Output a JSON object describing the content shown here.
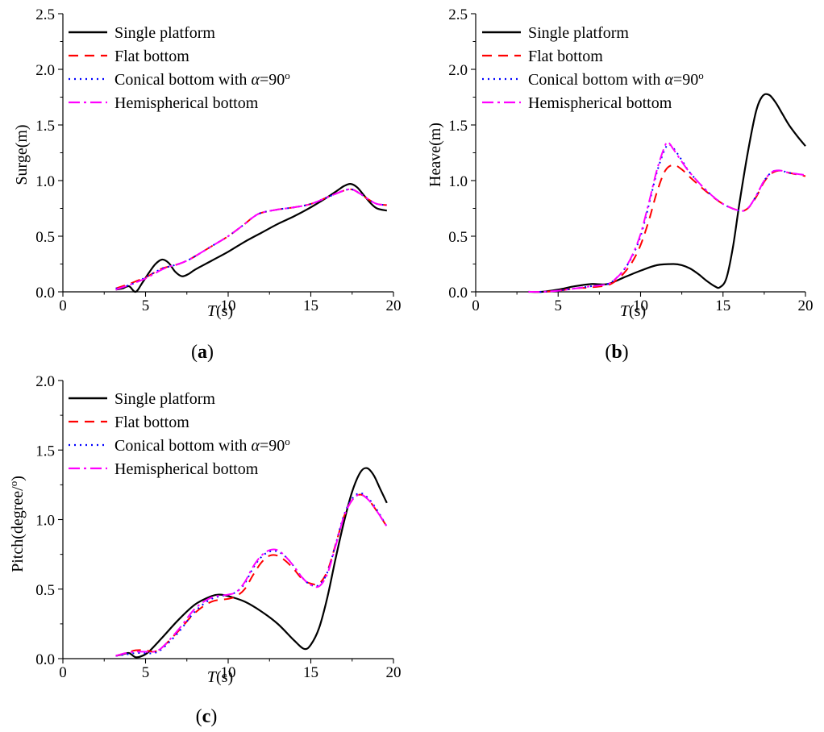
{
  "legend": [
    {
      "key": "single",
      "label": "Single platform",
      "color": "#000000",
      "dash": ""
    },
    {
      "key": "flat",
      "label": "Flat bottom",
      "color": "#ff0000",
      "dash": "12 8"
    },
    {
      "key": "conical",
      "label_prefix": "Conical bottom with ",
      "label_symbol": "α",
      "label_suffix": "=90",
      "label_sup": "o",
      "color": "#0000ff",
      "dash": "2 5"
    },
    {
      "key": "hemi",
      "label": "Hemispherical bottom",
      "color": "#ff00ff",
      "dash": "14 5 3 5"
    }
  ],
  "chart_data": [
    {
      "id": "a",
      "caption": "a",
      "type": "line",
      "ylabel": "Surge(m)",
      "xlabel": "T",
      "xlabel_unit": "(s)",
      "xlim": [
        0,
        20
      ],
      "ylim": [
        0,
        2.5
      ],
      "xticks": [
        0,
        5,
        10,
        15,
        20
      ],
      "yticks": [
        0.0,
        0.5,
        1.0,
        1.5,
        2.0,
        2.5
      ],
      "xticklabels": [
        "0",
        "5",
        "10",
        "15",
        "20"
      ],
      "yticklabels": [
        "0.0",
        "0.5",
        "1.0",
        "1.5",
        "2.0",
        "2.5"
      ],
      "series": [
        {
          "name": "Single platform",
          "x": [
            3.2,
            3.6,
            4.0,
            4.4,
            4.8,
            5.2,
            5.6,
            6.0,
            6.4,
            6.8,
            7.2,
            7.6,
            8.0,
            9.0,
            10.0,
            11.0,
            12.0,
            13.0,
            14.0,
            15.0,
            16.0,
            16.6,
            17.0,
            17.4,
            17.8,
            18.2,
            18.6,
            19.0,
            19.6
          ],
          "y": [
            0.02,
            0.03,
            0.05,
            0.0,
            0.08,
            0.17,
            0.25,
            0.29,
            0.26,
            0.18,
            0.14,
            0.16,
            0.2,
            0.28,
            0.36,
            0.45,
            0.53,
            0.61,
            0.68,
            0.76,
            0.85,
            0.91,
            0.95,
            0.97,
            0.94,
            0.87,
            0.8,
            0.75,
            0.73
          ]
        },
        {
          "name": "Flat bottom",
          "x": [
            3.2,
            3.6,
            4.0,
            4.5,
            5.0,
            5.5,
            6.0,
            6.5,
            7.0,
            7.5,
            8.0,
            9.0,
            10.0,
            11.0,
            11.5,
            12.0,
            13.0,
            14.0,
            15.0,
            16.0,
            17.0,
            17.5,
            18.0,
            18.5,
            19.0,
            19.6
          ],
          "y": [
            0.03,
            0.05,
            0.07,
            0.1,
            0.13,
            0.17,
            0.21,
            0.23,
            0.25,
            0.28,
            0.32,
            0.41,
            0.5,
            0.61,
            0.67,
            0.71,
            0.74,
            0.76,
            0.79,
            0.85,
            0.91,
            0.92,
            0.88,
            0.83,
            0.79,
            0.78
          ]
        },
        {
          "name": "Conical bottom with α=90o",
          "x": [
            3.2,
            3.6,
            4.0,
            4.5,
            5.0,
            5.5,
            6.0,
            6.5,
            7.0,
            7.5,
            8.0,
            9.0,
            10.0,
            11.0,
            11.5,
            12.0,
            13.0,
            14.0,
            15.0,
            16.0,
            17.0,
            17.5,
            18.0,
            18.5,
            19.0,
            19.6
          ],
          "y": [
            0.03,
            0.04,
            0.06,
            0.09,
            0.13,
            0.17,
            0.21,
            0.23,
            0.25,
            0.28,
            0.32,
            0.41,
            0.5,
            0.61,
            0.67,
            0.71,
            0.74,
            0.76,
            0.79,
            0.85,
            0.91,
            0.92,
            0.88,
            0.83,
            0.79,
            0.78
          ]
        },
        {
          "name": "Hemispherical bottom",
          "x": [
            3.2,
            3.6,
            4.0,
            4.5,
            5.0,
            5.5,
            6.0,
            6.5,
            7.0,
            7.5,
            8.0,
            9.0,
            10.0,
            11.0,
            11.5,
            12.0,
            13.0,
            14.0,
            15.0,
            16.0,
            17.0,
            17.5,
            18.0,
            18.5,
            19.0,
            19.6
          ],
          "y": [
            0.02,
            0.04,
            0.06,
            0.09,
            0.12,
            0.16,
            0.2,
            0.23,
            0.25,
            0.28,
            0.32,
            0.41,
            0.5,
            0.61,
            0.67,
            0.71,
            0.74,
            0.76,
            0.79,
            0.85,
            0.91,
            0.92,
            0.88,
            0.83,
            0.79,
            0.78
          ]
        }
      ]
    },
    {
      "id": "b",
      "caption": "b",
      "type": "line",
      "ylabel": "Heave(m)",
      "xlabel": "T",
      "xlabel_unit": "(s)",
      "xlim": [
        0,
        20
      ],
      "ylim": [
        0,
        2.5
      ],
      "xticks": [
        0,
        5,
        10,
        15,
        20
      ],
      "yticks": [
        0.0,
        0.5,
        1.0,
        1.5,
        2.0,
        2.5
      ],
      "xticklabels": [
        "0",
        "5",
        "10",
        "15",
        "20"
      ],
      "yticklabels": [
        "0.0",
        "0.5",
        "1.0",
        "1.5",
        "2.0",
        "2.5"
      ],
      "series": [
        {
          "name": "Single platform",
          "x": [
            3.2,
            4.0,
            5.0,
            6.0,
            7.0,
            8.0,
            9.0,
            10.0,
            11.0,
            12.0,
            12.5,
            13.0,
            13.5,
            14.0,
            14.5,
            14.8,
            15.2,
            15.6,
            16.0,
            16.5,
            17.0,
            17.4,
            17.8,
            18.2,
            18.6,
            19.0,
            19.5,
            20.0
          ],
          "y": [
            0.0,
            0.0,
            0.02,
            0.05,
            0.07,
            0.07,
            0.13,
            0.19,
            0.24,
            0.25,
            0.24,
            0.21,
            0.16,
            0.1,
            0.05,
            0.04,
            0.12,
            0.4,
            0.8,
            1.25,
            1.62,
            1.76,
            1.77,
            1.7,
            1.6,
            1.5,
            1.4,
            1.31
          ]
        },
        {
          "name": "Flat bottom",
          "x": [
            3.2,
            4.0,
            5.0,
            6.0,
            7.0,
            8.0,
            8.5,
            9.0,
            9.5,
            10.0,
            10.5,
            11.0,
            11.5,
            12.0,
            12.5,
            13.0,
            14.0,
            15.0,
            16.0,
            16.5,
            17.0,
            17.5,
            18.0,
            18.5,
            19.0,
            20.0
          ],
          "y": [
            0.0,
            0.0,
            0.01,
            0.03,
            0.04,
            0.06,
            0.1,
            0.17,
            0.27,
            0.42,
            0.64,
            0.9,
            1.09,
            1.14,
            1.1,
            1.03,
            0.9,
            0.79,
            0.73,
            0.75,
            0.85,
            0.99,
            1.07,
            1.09,
            1.07,
            1.04
          ]
        },
        {
          "name": "Conical bottom with α=90o",
          "x": [
            3.2,
            4.0,
            5.0,
            6.0,
            7.0,
            8.0,
            8.5,
            9.0,
            9.5,
            10.0,
            10.5,
            11.0,
            11.5,
            11.8,
            12.2,
            12.6,
            13.0,
            14.0,
            15.0,
            16.0,
            16.5,
            17.0,
            17.5,
            18.0,
            18.5,
            19.0,
            20.0
          ],
          "y": [
            0.0,
            0.0,
            0.01,
            0.03,
            0.05,
            0.07,
            0.12,
            0.2,
            0.32,
            0.5,
            0.78,
            1.08,
            1.29,
            1.32,
            1.25,
            1.16,
            1.07,
            0.91,
            0.79,
            0.73,
            0.75,
            0.86,
            1.0,
            1.08,
            1.09,
            1.07,
            1.05
          ]
        },
        {
          "name": "Hemispherical bottom",
          "x": [
            3.2,
            4.0,
            5.0,
            6.0,
            7.0,
            8.0,
            8.5,
            9.0,
            9.5,
            10.0,
            10.5,
            11.0,
            11.5,
            11.7,
            12.0,
            12.5,
            13.0,
            14.0,
            15.0,
            16.0,
            16.5,
            17.0,
            17.5,
            18.0,
            18.5,
            19.0,
            20.0
          ],
          "y": [
            0.0,
            0.0,
            0.01,
            0.03,
            0.05,
            0.07,
            0.12,
            0.2,
            0.33,
            0.52,
            0.8,
            1.1,
            1.32,
            1.34,
            1.28,
            1.17,
            1.07,
            0.91,
            0.79,
            0.73,
            0.75,
            0.86,
            1.0,
            1.08,
            1.09,
            1.07,
            1.05
          ]
        }
      ]
    },
    {
      "id": "c",
      "caption": "c",
      "type": "line",
      "ylabel": "Pitch(degree/",
      "ylabel_sup": "o",
      "ylabel_close": ")",
      "xlabel": "T",
      "xlabel_unit": "(s)",
      "xlim": [
        0,
        20
      ],
      "ylim": [
        0,
        2.0
      ],
      "xticks": [
        0,
        5,
        10,
        15,
        20
      ],
      "yticks": [
        0.0,
        0.5,
        1.0,
        1.5,
        2.0
      ],
      "xticklabels": [
        "0",
        "5",
        "10",
        "15",
        "20"
      ],
      "yticklabels": [
        "0.0",
        "0.5",
        "1.0",
        "1.5",
        "2.0"
      ],
      "series": [
        {
          "name": "Single platform",
          "x": [
            3.2,
            3.6,
            4.0,
            4.4,
            4.8,
            5.2,
            6.0,
            7.0,
            8.0,
            9.0,
            9.5,
            10.0,
            11.0,
            12.0,
            13.0,
            14.0,
            14.6,
            15.0,
            15.5,
            16.0,
            16.5,
            17.0,
            17.5,
            18.0,
            18.4,
            18.8,
            19.2,
            19.6
          ],
          "y": [
            0.02,
            0.03,
            0.04,
            0.01,
            0.02,
            0.05,
            0.15,
            0.28,
            0.39,
            0.45,
            0.46,
            0.45,
            0.41,
            0.34,
            0.25,
            0.13,
            0.07,
            0.1,
            0.22,
            0.44,
            0.72,
            0.98,
            1.2,
            1.34,
            1.37,
            1.32,
            1.22,
            1.12
          ]
        },
        {
          "name": "Flat bottom",
          "x": [
            3.2,
            3.8,
            4.4,
            5.0,
            5.5,
            6.0,
            7.0,
            8.0,
            9.0,
            10.0,
            10.5,
            11.0,
            11.5,
            12.0,
            12.5,
            13.0,
            13.5,
            14.0,
            14.5,
            15.0,
            15.5,
            16.0,
            16.5,
            17.0,
            17.5,
            18.0,
            18.5,
            19.0,
            19.6
          ],
          "y": [
            0.02,
            0.04,
            0.06,
            0.06,
            0.05,
            0.08,
            0.2,
            0.33,
            0.41,
            0.43,
            0.45,
            0.5,
            0.6,
            0.69,
            0.74,
            0.74,
            0.7,
            0.64,
            0.57,
            0.54,
            0.54,
            0.63,
            0.82,
            1.02,
            1.14,
            1.18,
            1.14,
            1.06,
            0.95
          ]
        },
        {
          "name": "Conical bottom with α=90o",
          "x": [
            3.2,
            3.8,
            4.4,
            5.0,
            5.5,
            6.0,
            7.0,
            8.0,
            9.0,
            10.0,
            10.5,
            11.0,
            11.5,
            12.0,
            12.5,
            13.0,
            13.5,
            14.0,
            14.5,
            15.0,
            15.5,
            16.0,
            16.5,
            17.0,
            17.5,
            18.0,
            18.5,
            19.0,
            19.6
          ],
          "y": [
            0.02,
            0.03,
            0.04,
            0.04,
            0.04,
            0.07,
            0.19,
            0.34,
            0.43,
            0.46,
            0.48,
            0.54,
            0.65,
            0.73,
            0.77,
            0.77,
            0.73,
            0.66,
            0.58,
            0.53,
            0.53,
            0.62,
            0.82,
            1.03,
            1.15,
            1.19,
            1.15,
            1.07,
            0.95
          ]
        },
        {
          "name": "Hemispherical bottom",
          "x": [
            3.2,
            3.8,
            4.4,
            5.0,
            5.5,
            6.0,
            7.0,
            8.0,
            9.0,
            10.0,
            10.5,
            11.0,
            11.5,
            12.0,
            12.5,
            13.0,
            13.5,
            14.0,
            14.5,
            15.0,
            15.5,
            16.0,
            16.5,
            17.0,
            17.5,
            18.0,
            18.5,
            19.0,
            19.6
          ],
          "y": [
            0.02,
            0.04,
            0.05,
            0.05,
            0.05,
            0.08,
            0.21,
            0.36,
            0.44,
            0.46,
            0.48,
            0.55,
            0.66,
            0.74,
            0.78,
            0.78,
            0.73,
            0.66,
            0.58,
            0.53,
            0.52,
            0.61,
            0.81,
            1.02,
            1.14,
            1.18,
            1.14,
            1.06,
            0.95
          ]
        }
      ]
    }
  ]
}
